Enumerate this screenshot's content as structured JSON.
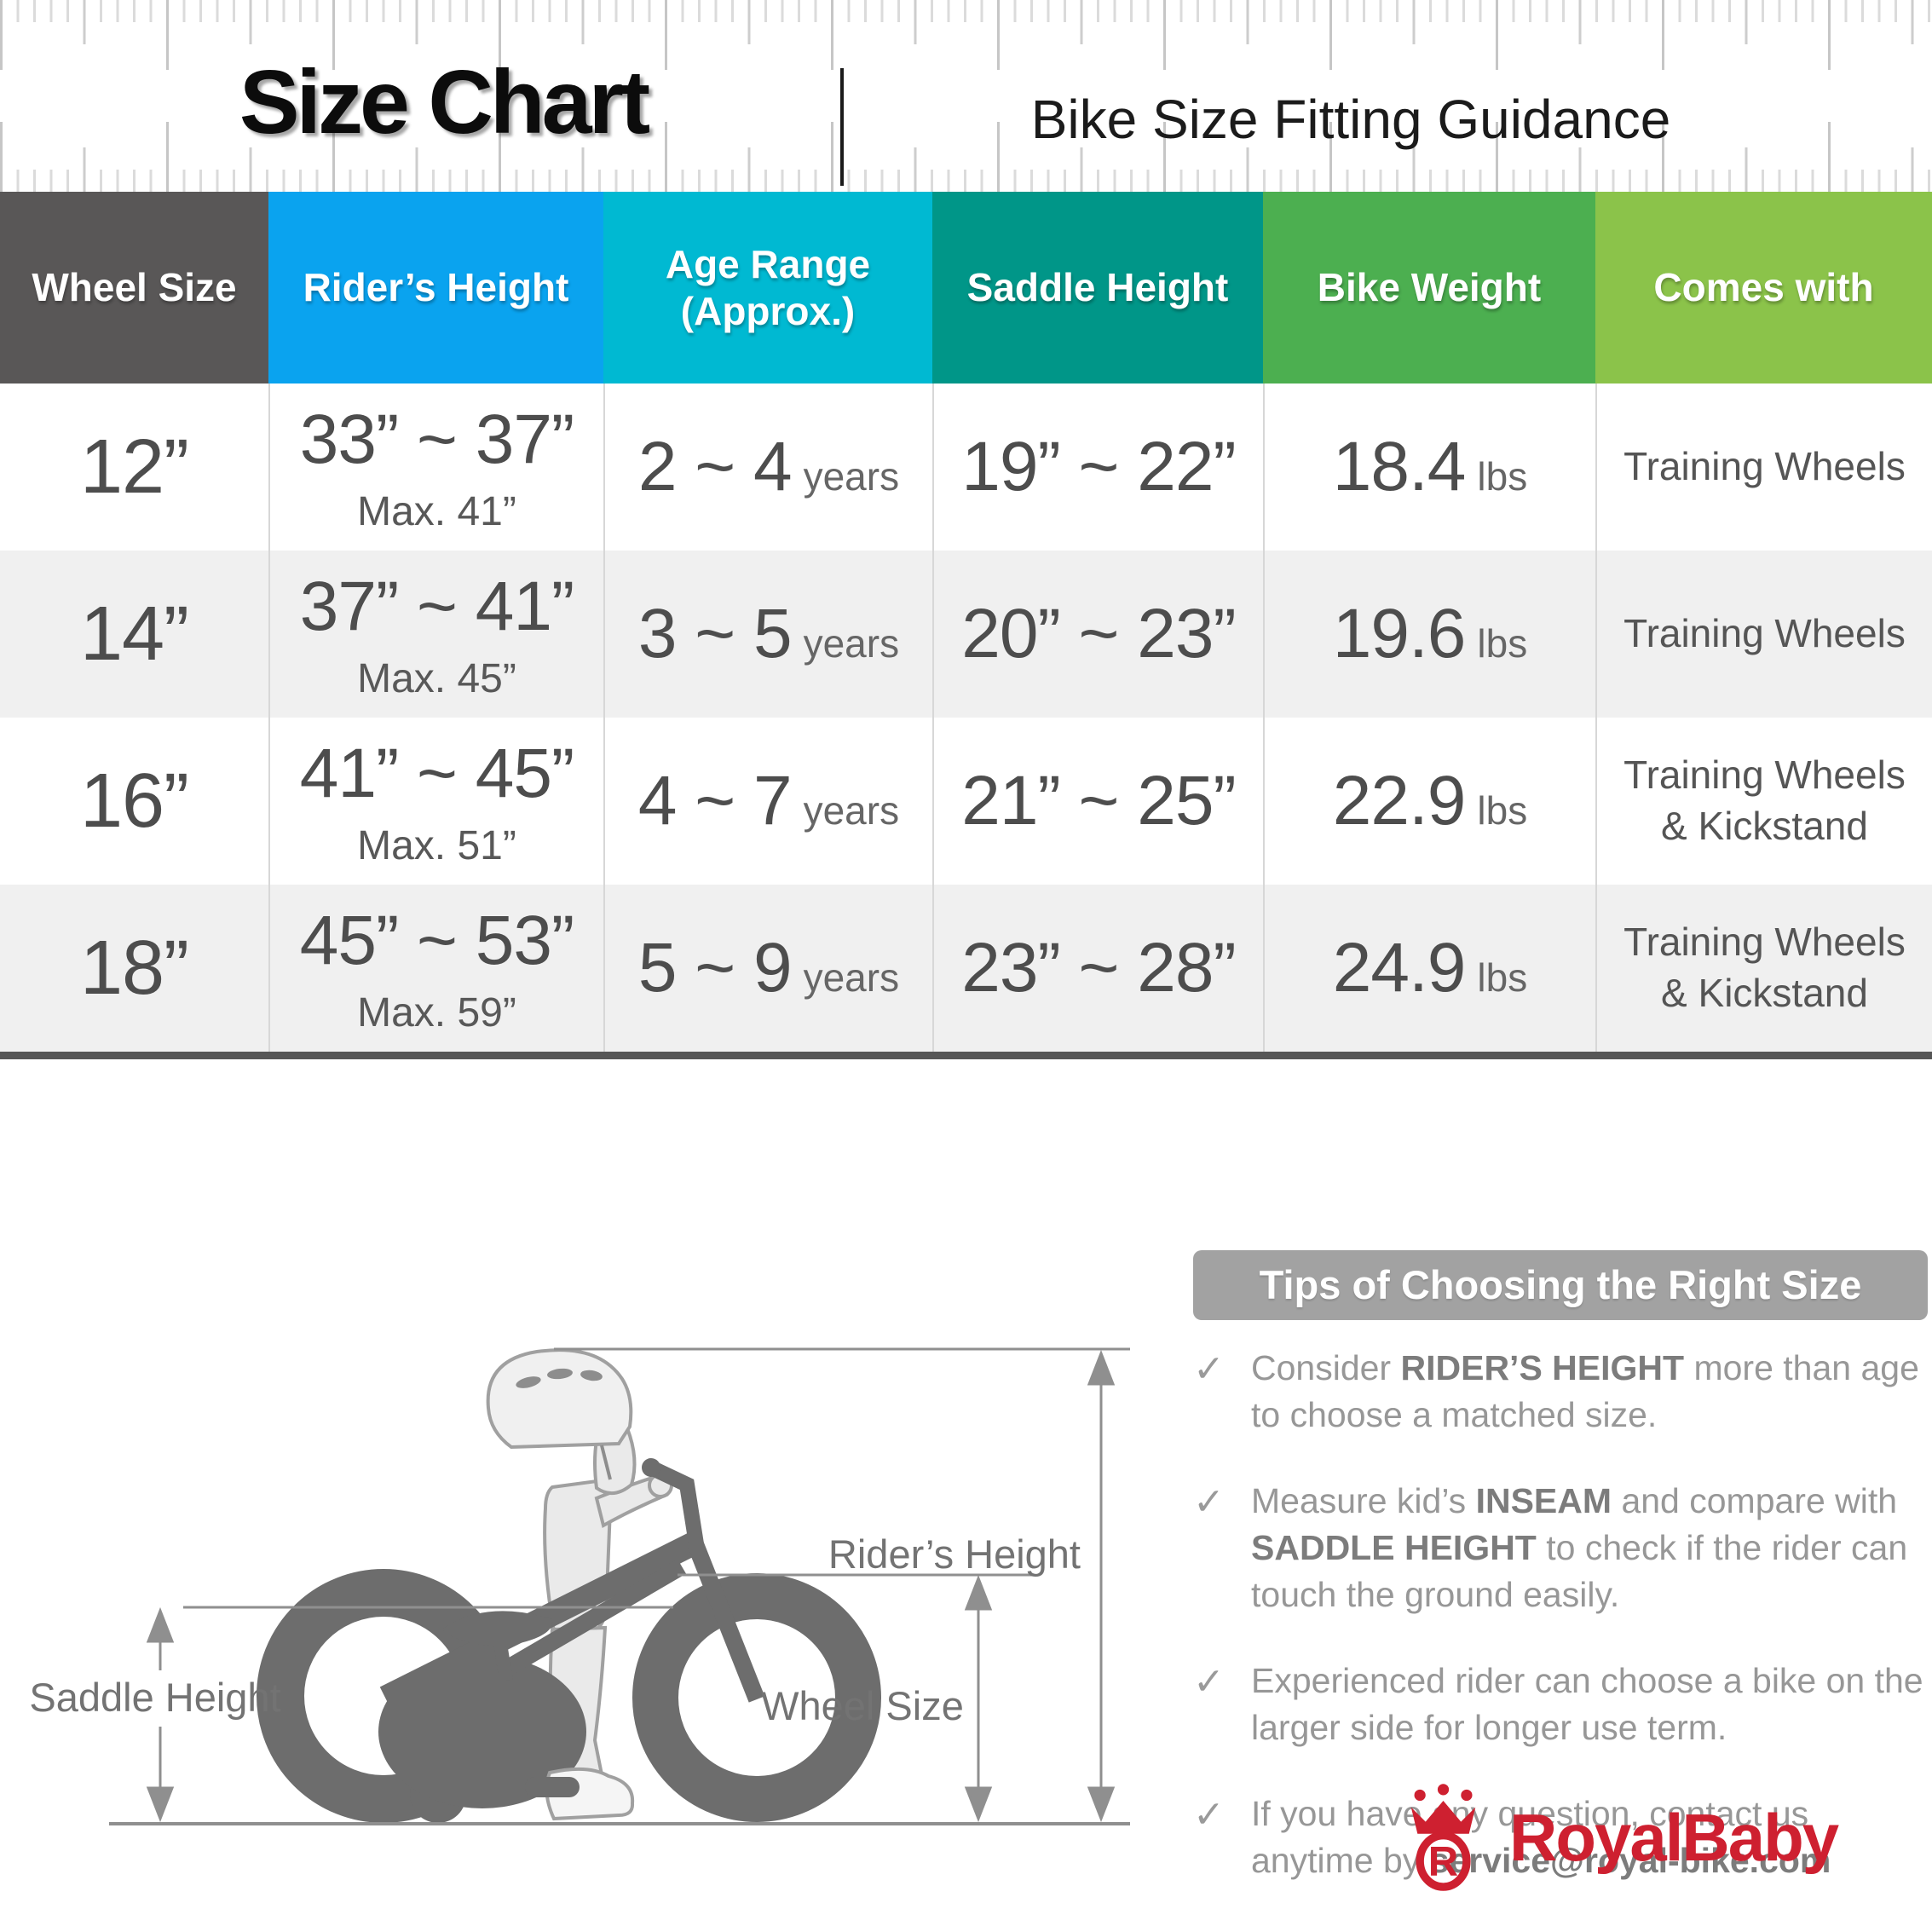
{
  "header": {
    "title": "Size Chart",
    "subtitle": "Bike Size Fitting Guidance"
  },
  "table": {
    "columns": [
      {
        "label": "Wheel Size",
        "label2": "",
        "color": "#595757"
      },
      {
        "label": "Rider’s Height",
        "label2": "",
        "color": "#0aa3ef"
      },
      {
        "label": "Age Range",
        "label2": "(Approx.)",
        "color": "#00b9d2"
      },
      {
        "label": "Saddle Height",
        "label2": "",
        "color": "#009688"
      },
      {
        "label": "Bike Weight",
        "label2": "",
        "color": "#4caf50"
      },
      {
        "label": "Comes with",
        "label2": "",
        "color": "#8bc34a"
      }
    ],
    "rows": [
      {
        "wheel": "12”",
        "height": "33” ~ 37”",
        "height_max": "Max. 41”",
        "age": "2 ~ 4",
        "age_unit": "years",
        "saddle": "19” ~ 22”",
        "weight": "18.4",
        "weight_unit": "lbs",
        "comes1": "Training Wheels",
        "comes2": ""
      },
      {
        "wheel": "14”",
        "height": "37” ~ 41”",
        "height_max": "Max. 45”",
        "age": "3 ~ 5",
        "age_unit": "years",
        "saddle": "20” ~ 23”",
        "weight": "19.6",
        "weight_unit": "lbs",
        "comes1": "Training Wheels",
        "comes2": ""
      },
      {
        "wheel": "16”",
        "height": "41” ~ 45”",
        "height_max": "Max. 51”",
        "age": "4 ~ 7",
        "age_unit": "years",
        "saddle": "21” ~ 25”",
        "weight": "22.9",
        "weight_unit": "lbs",
        "comes1": "Training Wheels",
        "comes2": "& Kickstand"
      },
      {
        "wheel": "18”",
        "height": "45” ~ 53”",
        "height_max": "Max. 59”",
        "age": "5 ~ 9",
        "age_unit": "years",
        "saddle": "23” ~ 28”",
        "weight": "24.9",
        "weight_unit": "lbs",
        "comes1": "Training Wheels",
        "comes2": "& Kickstand"
      }
    ]
  },
  "diagram": {
    "saddle_label": "Saddle Height",
    "rider_label": "Rider’s Height",
    "wheel_label": "Wheel Size"
  },
  "tips": {
    "title": "Tips of Choosing the Right Size",
    "check": "✓",
    "items": [
      [
        {
          "t": "Consider "
        },
        {
          "t": "RIDER’S HEIGHT",
          "b": true
        },
        {
          "t": " more than age to choose a matched size."
        }
      ],
      [
        {
          "t": "Measure kid’s "
        },
        {
          "t": "INSEAM",
          "b": true
        },
        {
          "t": " and compare with "
        },
        {
          "t": "SADDLE HEIGHT",
          "b": true
        },
        {
          "t": " to check if the rider can touch the ground easily."
        }
      ],
      [
        {
          "t": "Experienced rider can choose a bike on the larger side for longer use term."
        }
      ],
      [
        {
          "t": "If you have any question, contact us anytime by "
        },
        {
          "t": "service@royal-bike.com",
          "b": true
        }
      ]
    ]
  },
  "brand": {
    "name": "RoyalBaby",
    "color": "#ce2030"
  }
}
